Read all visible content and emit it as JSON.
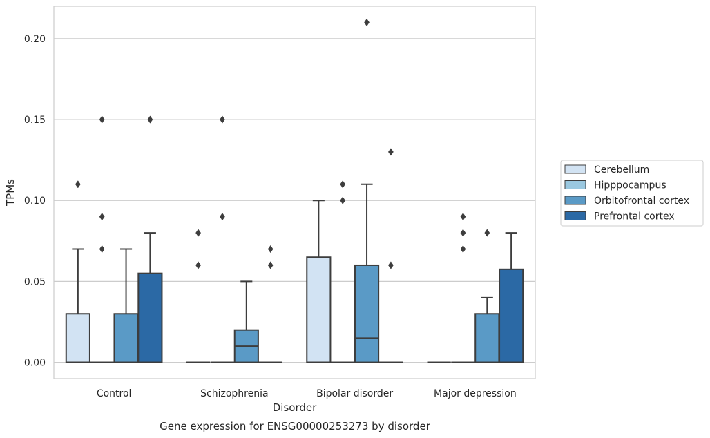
{
  "chart_data": {
    "type": "box",
    "xlabel": "Disorder",
    "ylabel": "TPMs",
    "caption": "Gene expression for ENSG00000253273 by disorder",
    "ylim": [
      -0.01,
      0.22
    ],
    "yticks": [
      "0.00",
      "0.05",
      "0.10",
      "0.15",
      "0.20"
    ],
    "ytick_values": [
      0.0,
      0.05,
      0.1,
      0.15,
      0.2
    ],
    "grid": true,
    "legend_position": "right",
    "categories": [
      "Control",
      "Schizophrenia",
      "Bipolar disorder",
      "Major depression"
    ],
    "series": [
      {
        "name": "Cerebellum",
        "color": "#d2e3f3",
        "boxes": [
          {
            "q1": 0.0,
            "median": 0.0,
            "q3": 0.03,
            "whisker_low": 0.0,
            "whisker_high": 0.07,
            "outliers": [
              0.11
            ]
          },
          {
            "q1": 0.0,
            "median": 0.0,
            "q3": 0.0,
            "whisker_low": 0.0,
            "whisker_high": 0.0,
            "outliers": [
              0.06,
              0.08
            ]
          },
          {
            "q1": 0.0,
            "median": 0.0,
            "q3": 0.065,
            "whisker_low": 0.0,
            "whisker_high": 0.1,
            "outliers": []
          },
          {
            "q1": 0.0,
            "median": 0.0,
            "q3": 0.0,
            "whisker_low": 0.0,
            "whisker_high": 0.0,
            "outliers": []
          }
        ]
      },
      {
        "name": "Hipppocampus",
        "color": "#9ac8e0",
        "boxes": [
          {
            "q1": 0.0,
            "median": 0.0,
            "q3": 0.0,
            "whisker_low": 0.0,
            "whisker_high": 0.0,
            "outliers": [
              0.07,
              0.09,
              0.15
            ]
          },
          {
            "q1": 0.0,
            "median": 0.0,
            "q3": 0.0,
            "whisker_low": 0.0,
            "whisker_high": 0.0,
            "outliers": [
              0.09,
              0.15
            ]
          },
          {
            "q1": 0.0,
            "median": 0.0,
            "q3": 0.0,
            "whisker_low": 0.0,
            "whisker_high": 0.0,
            "outliers": [
              0.1,
              0.11
            ]
          },
          {
            "q1": 0.0,
            "median": 0.0,
            "q3": 0.0,
            "whisker_low": 0.0,
            "whisker_high": 0.0,
            "outliers": [
              0.07,
              0.08,
              0.09
            ]
          }
        ]
      },
      {
        "name": "Orbitofrontal cortex",
        "color": "#5a9ac6",
        "boxes": [
          {
            "q1": 0.0,
            "median": 0.0,
            "q3": 0.03,
            "whisker_low": 0.0,
            "whisker_high": 0.07,
            "outliers": []
          },
          {
            "q1": 0.0,
            "median": 0.01,
            "q3": 0.02,
            "whisker_low": 0.0,
            "whisker_high": 0.05,
            "outliers": []
          },
          {
            "q1": 0.0,
            "median": 0.015,
            "q3": 0.06,
            "whisker_low": 0.0,
            "whisker_high": 0.11,
            "outliers": [
              0.21
            ]
          },
          {
            "q1": 0.0,
            "median": 0.0,
            "q3": 0.03,
            "whisker_low": 0.0,
            "whisker_high": 0.04,
            "outliers": [
              0.08
            ]
          }
        ]
      },
      {
        "name": "Prefrontal cortex",
        "color": "#2b69a5",
        "boxes": [
          {
            "q1": 0.0,
            "median": 0.0,
            "q3": 0.055,
            "whisker_low": 0.0,
            "whisker_high": 0.08,
            "outliers": [
              0.15
            ]
          },
          {
            "q1": 0.0,
            "median": 0.0,
            "q3": 0.0,
            "whisker_low": 0.0,
            "whisker_high": 0.0,
            "outliers": [
              0.06,
              0.07
            ]
          },
          {
            "q1": 0.0,
            "median": 0.0,
            "q3": 0.0,
            "whisker_low": 0.0,
            "whisker_high": 0.0,
            "outliers": [
              0.06,
              0.13
            ]
          },
          {
            "q1": 0.0,
            "median": 0.0,
            "q3": 0.0575,
            "whisker_low": 0.0,
            "whisker_high": 0.08,
            "outliers": []
          }
        ]
      }
    ]
  }
}
